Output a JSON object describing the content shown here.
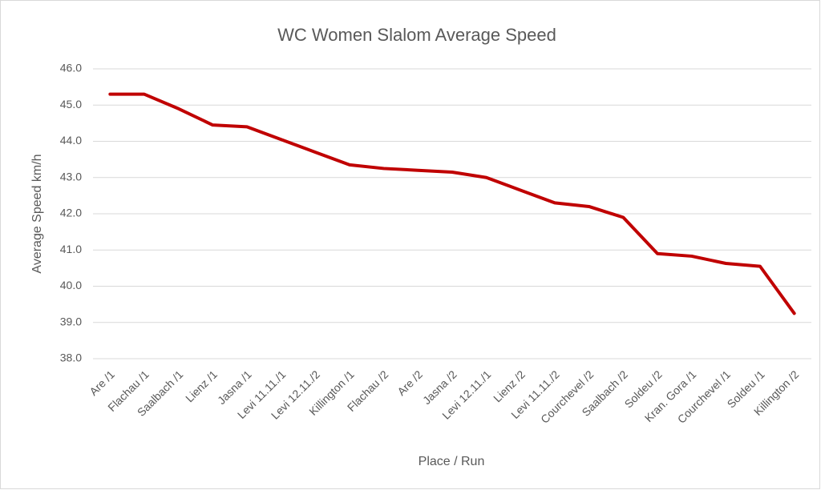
{
  "chart_data": {
    "type": "line",
    "title": "WC Women Slalom Average Speed",
    "x_label": "Place / Run",
    "y_label": "Average Speed km/h",
    "categories": [
      "Are /1",
      "Flachau /1",
      "Saalbach /1",
      "Lienz /1",
      "Jasna /1",
      "Levi 11.11./1",
      "Levi 12.11./2",
      "Killington /1",
      "Flachau /2",
      "Are /2",
      "Jasna /2",
      "Levi 12.11./1",
      "Lienz /2",
      "Levi 11.11./2",
      "Courchevel /2",
      "Saalbach /2",
      "Soldeu /2",
      "Kran. Gora /1",
      "Courchevel /1",
      "Soldeu /1",
      "Killington /2"
    ],
    "values": [
      45.3,
      45.3,
      44.9,
      44.45,
      44.4,
      44.05,
      43.7,
      43.35,
      43.25,
      43.2,
      43.15,
      43.0,
      42.65,
      42.3,
      42.2,
      41.9,
      40.9,
      40.83,
      40.63,
      40.55,
      39.25
    ],
    "color": "#c00000",
    "ylim": [
      38,
      46
    ],
    "yticks": [
      {
        "value": 38,
        "label": "38.0"
      },
      {
        "value": 39,
        "label": "39.0"
      },
      {
        "value": 40,
        "label": "40.0"
      },
      {
        "value": 41,
        "label": "41.0"
      },
      {
        "value": 42,
        "label": "42.0"
      },
      {
        "value": 43,
        "label": "43.0"
      },
      {
        "value": 44,
        "label": "44.0"
      },
      {
        "value": 45,
        "label": "45.0"
      },
      {
        "value": 46,
        "label": "46.0"
      }
    ],
    "grid": true
  }
}
